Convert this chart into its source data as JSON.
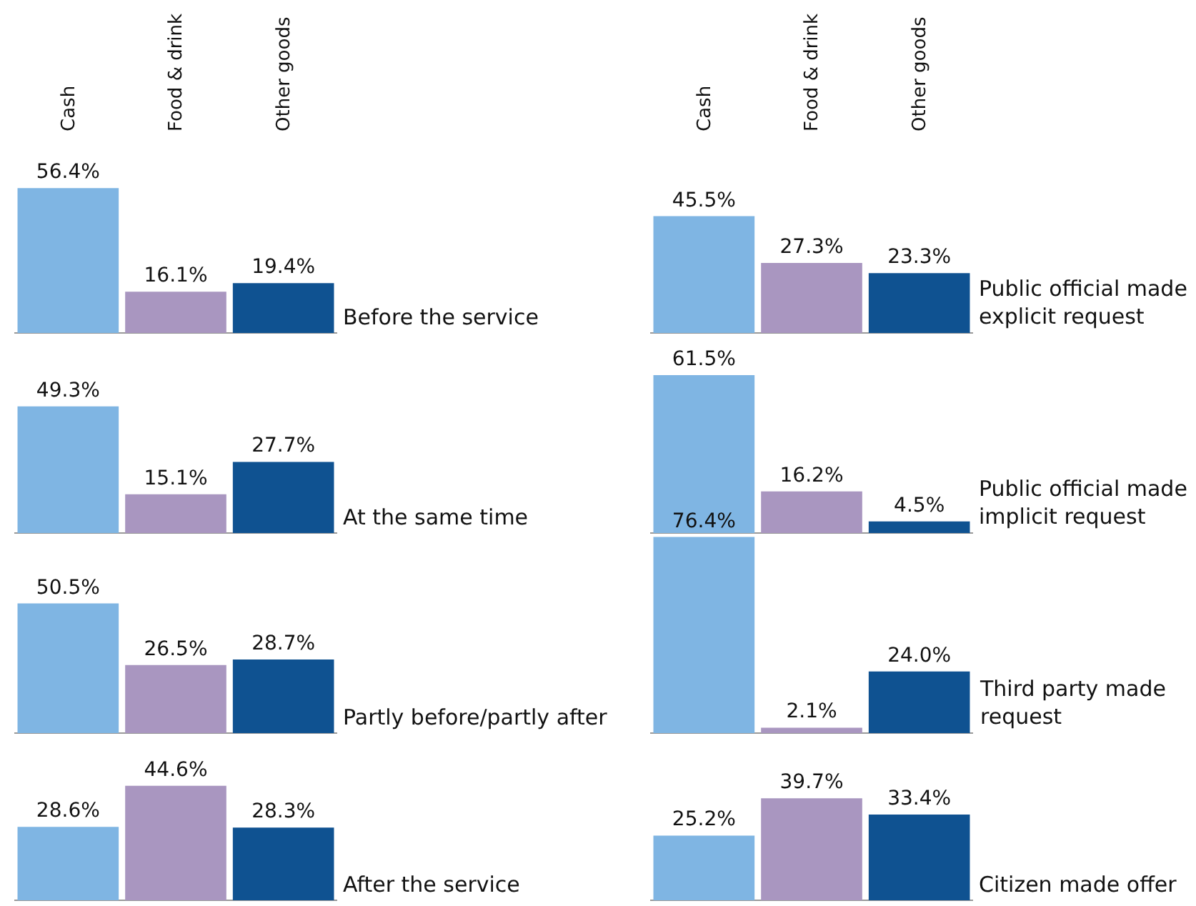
{
  "chart_data": [
    {
      "type": "bar",
      "title": "Before the service",
      "categories": [
        "Cash",
        "Food & drink",
        "Other goods"
      ],
      "colors": [
        "#7fb5e3",
        "#a996c0",
        "#0f5291"
      ],
      "values": [
        56.4,
        16.1,
        19.4
      ],
      "value_labels": [
        "56.4%",
        "16.1%",
        "19.4%"
      ],
      "tick_labels": "x"
    },
    {
      "type": "bar",
      "title": "Public official made explicit request",
      "categories": [
        "Cash",
        "Food & drink",
        "Other goods"
      ],
      "colors": [
        "#7fb5e3",
        "#a996c0",
        "#0f5291"
      ],
      "values": [
        45.5,
        27.3,
        23.3
      ],
      "value_labels": [
        "45.5%",
        "27.3%",
        "23.3%"
      ],
      "tick_labels": "x"
    },
    {
      "type": "bar",
      "title": "At the same time",
      "categories": [
        null,
        null,
        null
      ],
      "colors": [
        "#7fb5e3",
        "#a996c0",
        "#0f5291"
      ],
      "values": [
        49.3,
        15.1,
        27.7
      ],
      "value_labels": [
        "49.3%",
        "15.1%",
        "27.7%"
      ],
      "tick_labels": false
    },
    {
      "type": "bar",
      "title": "Public official made implicit request",
      "categories": [
        null,
        null,
        null
      ],
      "colors": [
        "#7fb5e3",
        "#a996c0",
        "#0f5291"
      ],
      "values": [
        61.5,
        16.2,
        4.5
      ],
      "value_labels": [
        "61.5%",
        "16.2%",
        "4.5%"
      ],
      "tick_labels": false
    },
    {
      "type": "bar",
      "title": "Partly before/partly after",
      "categories": [
        null,
        null,
        null
      ],
      "colors": [
        "#7fb5e3",
        "#a996c0",
        "#0f5291"
      ],
      "values": [
        50.5,
        26.5,
        28.7
      ],
      "value_labels": [
        "50.5%",
        "26.5%",
        "28.7%"
      ],
      "tick_labels": false
    },
    {
      "type": "bar",
      "title": "Third party made request",
      "categories": [
        null,
        null,
        null
      ],
      "colors": [
        "#7fb5e3",
        "#a996c0",
        "#0f5291"
      ],
      "values": [
        76.4,
        2.1,
        24.0
      ],
      "value_labels": [
        "76.4%",
        "2.1%",
        "24.0%"
      ],
      "tick_labels": false
    },
    {
      "type": "bar",
      "title": "After the service",
      "categories": [
        null,
        null,
        null
      ],
      "colors": [
        "#7fb5e3",
        "#a996c0",
        "#0f5291"
      ],
      "values": [
        28.6,
        44.6,
        28.3
      ],
      "value_labels": [
        "28.6%",
        "44.6%",
        "28.3%"
      ],
      "tick_labels": false
    },
    {
      "type": "bar",
      "title": "Citizen made offer",
      "categories": [
        null,
        null,
        null
      ],
      "colors": [
        "#7fb5e3",
        "#a996c0",
        "#0f5291"
      ],
      "values": [
        25.2,
        39.7,
        33.4
      ],
      "value_labels": [
        "25.2%",
        "39.7%",
        "33.4%"
      ],
      "tick_labels": false
    }
  ]
}
